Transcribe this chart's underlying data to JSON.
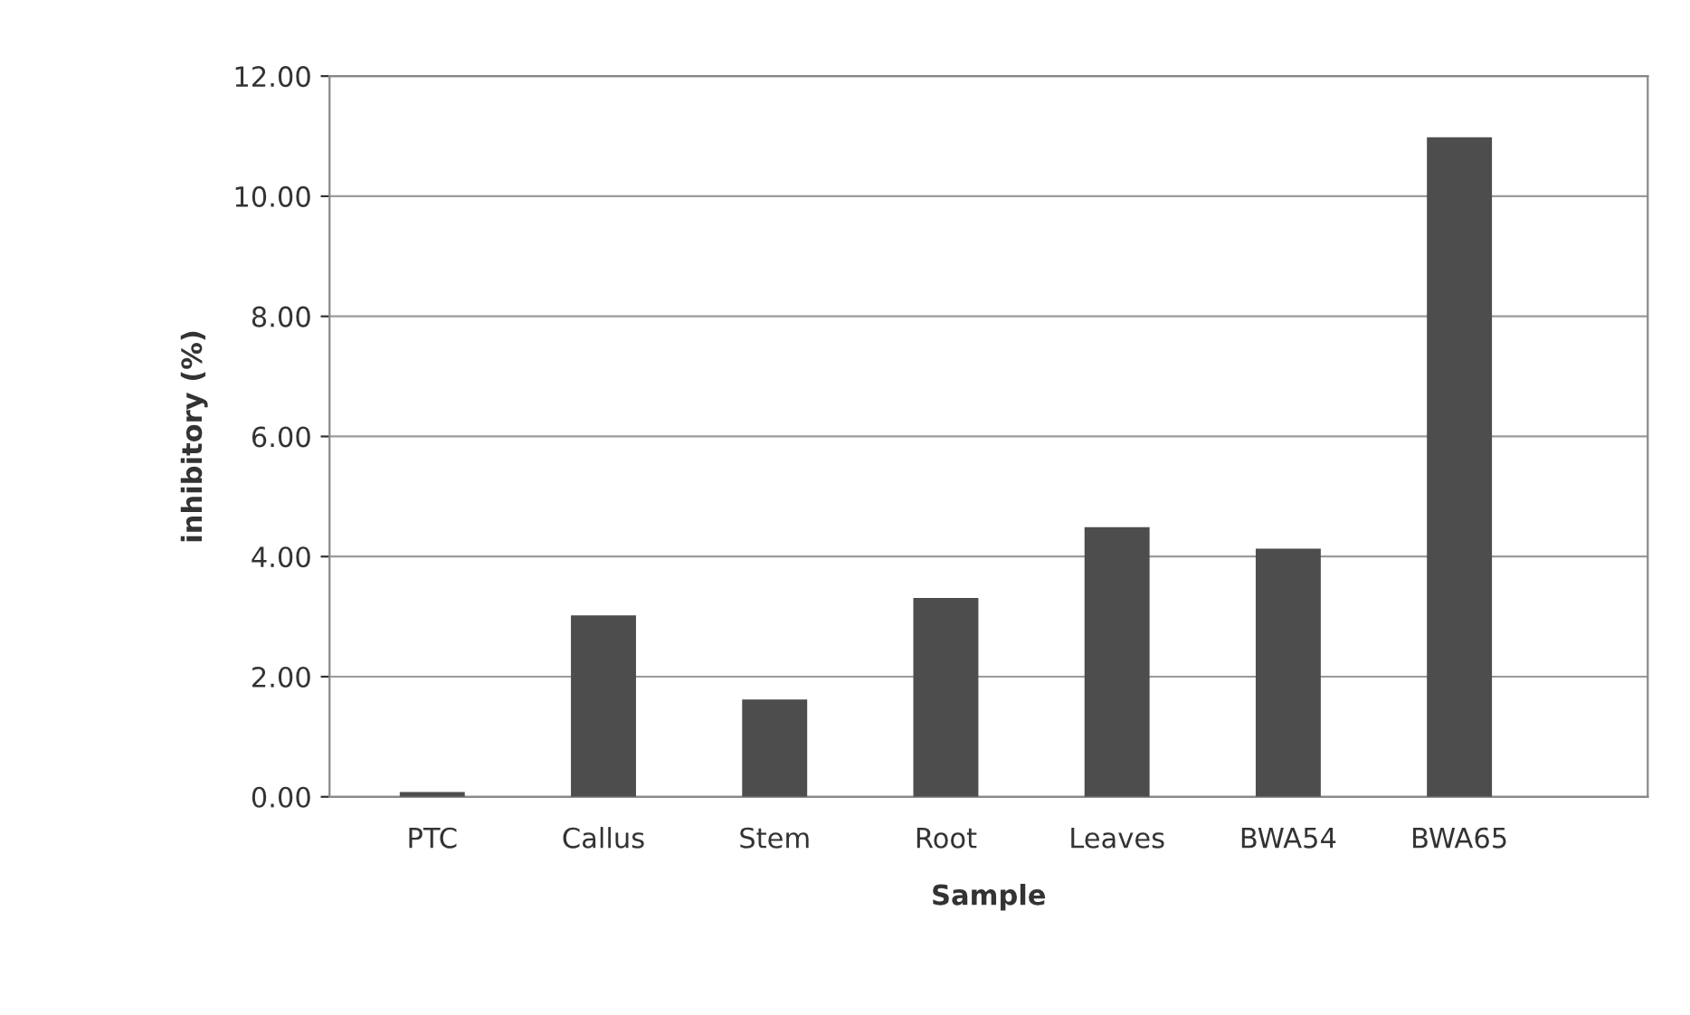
{
  "chart_data": {
    "type": "bar",
    "xlabel": "Sample",
    "ylabel": "inhibitory (%)",
    "categories": [
      "PTC",
      "Callus",
      "Stem",
      "Root",
      "Leaves",
      "BWA54",
      "BWA65"
    ],
    "values": [
      0.08,
      3.02,
      1.62,
      3.31,
      4.49,
      4.13,
      10.98
    ],
    "color": "#4d4d4d",
    "ylim": [
      0,
      12
    ],
    "yticks": [
      {
        "value": 0,
        "label": "0.00"
      },
      {
        "value": 2,
        "label": "2.00"
      },
      {
        "value": 4,
        "label": "4.00"
      },
      {
        "value": 6,
        "label": "6.00"
      },
      {
        "value": 8,
        "label": "8.00"
      },
      {
        "value": 10,
        "label": "10.00"
      },
      {
        "value": 12,
        "label": "12.00"
      }
    ],
    "grid": "y"
  }
}
